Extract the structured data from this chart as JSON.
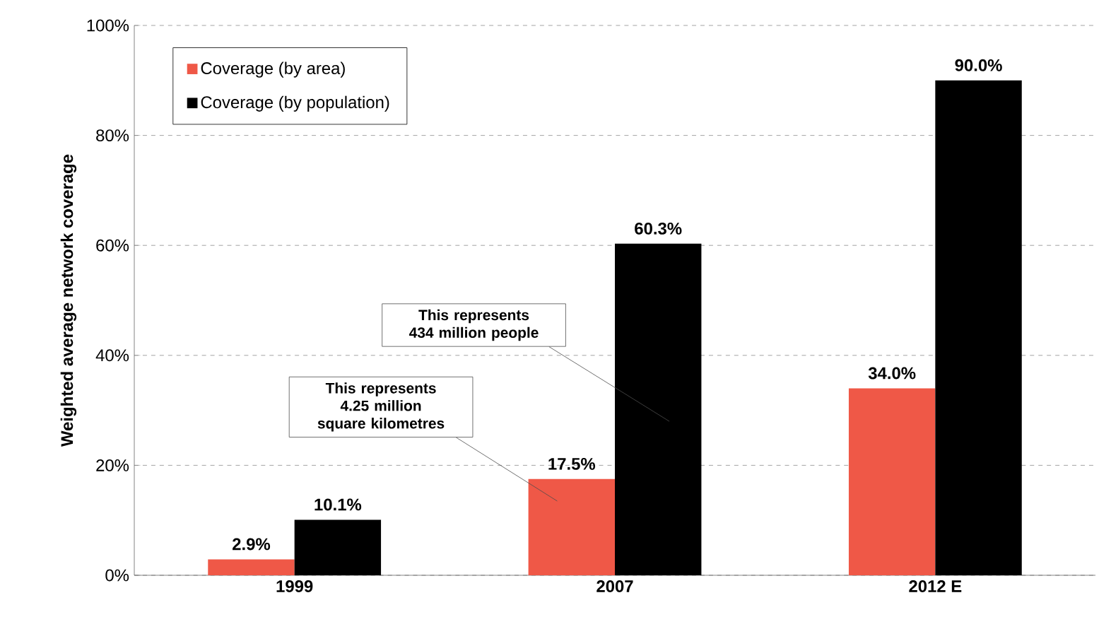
{
  "chart_data": {
    "type": "bar",
    "ylabel": "Weighted average network coverage",
    "categories": [
      "1999",
      "2007",
      "2012 E"
    ],
    "series": [
      {
        "name": "Coverage (by area)",
        "color": "#ef5847",
        "values": [
          2.9,
          17.5,
          34.0
        ],
        "value_labels": [
          "2.9%",
          "17.5%",
          "34.0%"
        ]
      },
      {
        "name": "Coverage (by population)",
        "color": "#000000",
        "values": [
          10.1,
          60.3,
          90.0
        ],
        "value_labels": [
          "10.1%",
          "60.3%",
          "90.0%"
        ]
      }
    ],
    "ylim": [
      0,
      100
    ],
    "yticks": [
      {
        "value": 0,
        "label": "0%"
      },
      {
        "value": 20,
        "label": "20%"
      },
      {
        "value": 40,
        "label": "40%"
      },
      {
        "value": 60,
        "label": "60%"
      },
      {
        "value": 80,
        "label": "80%"
      },
      {
        "value": 100,
        "label": "100%"
      }
    ],
    "grid": "y",
    "legend": "top left",
    "annotations": [
      "This represents 4.25 million square kilometres",
      "This represents 434 million people"
    ]
  }
}
